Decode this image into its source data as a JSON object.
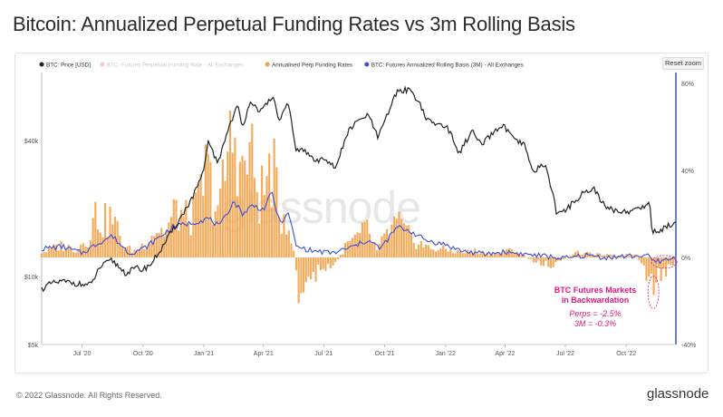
{
  "title": "Bitcoin: Annualized Perpetual Funding Rates vs 3m Rolling Basis",
  "reset_label": "Reset zoom",
  "watermark": "glassnode",
  "footer": {
    "copyright": "© 2022 Glassnode. All Rights Reserved.",
    "brand": "glassnode"
  },
  "annotation": {
    "line1": "BTC Futures Markets",
    "line2": "in Backwardation",
    "line3": "Perps = -2.5%",
    "line4": "3M = -0.3%"
  },
  "colors": {
    "price": "#222222",
    "funding_hidden": "#f26ba5",
    "perp_funding": "#f4a24a",
    "basis": "#3a4fd9",
    "annotation": "#e8177a",
    "axis_right": "#3a4fd9"
  },
  "chart_data": {
    "type": "line",
    "title": "Bitcoin: Annualized Perpetual Funding Rates vs 3m Rolling Basis",
    "x_range": [
      "2020-05-01",
      "2022-12-15"
    ],
    "x_tick_labels": [
      "Jul '20",
      "Oct '20",
      "Jan '21",
      "Apr '21",
      "Jul '21",
      "Oct '21",
      "Jan '22",
      "Apr '22",
      "Jul '22",
      "Oct '22"
    ],
    "y_left": {
      "scale": "log",
      "range": [
        5000,
        80000
      ],
      "tick_labels": [
        "$5k",
        "$10k",
        "$40k"
      ]
    },
    "y_right": {
      "scale": "linear",
      "range": [
        -40,
        85
      ],
      "tick_labels": [
        "-40%",
        "0%",
        "40%",
        "80%"
      ]
    },
    "grid": false,
    "legend_position": "top-left",
    "legend": [
      {
        "name": "BTC: Price [USD]",
        "color": "#222222"
      },
      {
        "name": "BTC: Futures Perpetual Funding Rate - All Exchanges",
        "color": "#f26ba5",
        "hidden": true
      },
      {
        "name": "Annualised Perp Funding Rates",
        "color": "#f4a24a"
      },
      {
        "name": "BTC: Futures Annualized Rolling Basis (3M) - All Exchanges",
        "color": "#3a4fd9"
      }
    ],
    "series": [
      {
        "name": "BTC: Price [USD]",
        "axis": "left",
        "style": "line",
        "points": [
          [
            "2020-05-01",
            8800
          ],
          [
            "2020-05-15",
            9300
          ],
          [
            "2020-06-01",
            9500
          ],
          [
            "2020-06-15",
            9400
          ],
          [
            "2020-07-01",
            9200
          ],
          [
            "2020-07-15",
            9200
          ],
          [
            "2020-07-28",
            11000
          ],
          [
            "2020-08-15",
            11800
          ],
          [
            "2020-09-05",
            10300
          ],
          [
            "2020-09-20",
            10900
          ],
          [
            "2020-10-01",
            10700
          ],
          [
            "2020-10-15",
            11500
          ],
          [
            "2020-11-01",
            13700
          ],
          [
            "2020-11-15",
            16000
          ],
          [
            "2020-12-01",
            19000
          ],
          [
            "2020-12-17",
            23000
          ],
          [
            "2021-01-01",
            29000
          ],
          [
            "2021-01-08",
            40000
          ],
          [
            "2021-01-22",
            31000
          ],
          [
            "2021-02-08",
            46000
          ],
          [
            "2021-02-21",
            57000
          ],
          [
            "2021-02-28",
            45000
          ],
          [
            "2021-03-13",
            61000
          ],
          [
            "2021-03-25",
            52000
          ],
          [
            "2021-04-14",
            63000
          ],
          [
            "2021-04-25",
            49000
          ],
          [
            "2021-05-08",
            58000
          ],
          [
            "2021-05-19",
            37000
          ],
          [
            "2021-06-01",
            36000
          ],
          [
            "2021-06-22",
            32000
          ],
          [
            "2021-07-01",
            34000
          ],
          [
            "2021-07-20",
            30000
          ],
          [
            "2021-08-07",
            44000
          ],
          [
            "2021-08-23",
            49000
          ],
          [
            "2021-09-06",
            52000
          ],
          [
            "2021-09-21",
            41000
          ],
          [
            "2021-10-01",
            48000
          ],
          [
            "2021-10-20",
            66000
          ],
          [
            "2021-11-08",
            67500
          ],
          [
            "2021-11-25",
            57000
          ],
          [
            "2021-12-04",
            49000
          ],
          [
            "2021-12-20",
            47000
          ],
          [
            "2022-01-01",
            47000
          ],
          [
            "2022-01-22",
            35000
          ],
          [
            "2022-02-10",
            44000
          ],
          [
            "2022-02-24",
            38000
          ],
          [
            "2022-03-28",
            47000
          ],
          [
            "2022-04-15",
            40000
          ],
          [
            "2022-05-01",
            38000
          ],
          [
            "2022-05-12",
            29000
          ],
          [
            "2022-05-31",
            31500
          ],
          [
            "2022-06-18",
            19000
          ],
          [
            "2022-07-01",
            19500
          ],
          [
            "2022-07-30",
            23800
          ],
          [
            "2022-08-14",
            24300
          ],
          [
            "2022-08-31",
            20000
          ],
          [
            "2022-09-15",
            19700
          ],
          [
            "2022-10-01",
            19300
          ],
          [
            "2022-10-25",
            20200
          ],
          [
            "2022-11-05",
            21300
          ],
          [
            "2022-11-09",
            16000
          ],
          [
            "2022-11-21",
            15800
          ],
          [
            "2022-12-05",
            17000
          ],
          [
            "2022-12-15",
            17300
          ]
        ]
      },
      {
        "name": "BTC: Futures Annualized Rolling Basis (3M) - All Exchanges",
        "axis": "right",
        "style": "line",
        "points": [
          [
            "2020-05-01",
            4
          ],
          [
            "2020-06-01",
            5
          ],
          [
            "2020-07-01",
            2
          ],
          [
            "2020-07-28",
            7
          ],
          [
            "2020-08-15",
            10
          ],
          [
            "2020-09-10",
            2
          ],
          [
            "2020-10-01",
            4
          ],
          [
            "2020-10-20",
            8
          ],
          [
            "2020-11-15",
            14
          ],
          [
            "2020-12-15",
            16
          ],
          [
            "2021-01-08",
            18
          ],
          [
            "2021-01-25",
            14
          ],
          [
            "2021-02-15",
            26
          ],
          [
            "2021-03-01",
            20
          ],
          [
            "2021-03-15",
            24
          ],
          [
            "2021-04-01",
            22
          ],
          [
            "2021-04-14",
            30
          ],
          [
            "2021-04-25",
            16
          ],
          [
            "2021-05-10",
            20
          ],
          [
            "2021-05-20",
            5
          ],
          [
            "2021-06-15",
            3
          ],
          [
            "2021-07-15",
            2
          ],
          [
            "2021-08-15",
            5
          ],
          [
            "2021-09-06",
            8
          ],
          [
            "2021-09-25",
            4
          ],
          [
            "2021-10-20",
            14
          ],
          [
            "2021-11-10",
            12
          ],
          [
            "2021-12-01",
            8
          ],
          [
            "2021-12-31",
            6
          ],
          [
            "2022-01-25",
            3
          ],
          [
            "2022-03-01",
            1.5
          ],
          [
            "2022-04-01",
            2.5
          ],
          [
            "2022-05-01",
            1.5
          ],
          [
            "2022-06-01",
            0.5
          ],
          [
            "2022-07-01",
            -0.5
          ],
          [
            "2022-08-01",
            1
          ],
          [
            "2022-09-01",
            0
          ],
          [
            "2022-10-01",
            0.5
          ],
          [
            "2022-11-01",
            1
          ],
          [
            "2022-11-12",
            -2
          ],
          [
            "2022-12-15",
            -0.3
          ]
        ]
      },
      {
        "name": "Annualised Perp Funding Rates",
        "axis": "right",
        "style": "bar",
        "points": [
          [
            "2020-05-01",
            3
          ],
          [
            "2020-05-20",
            6
          ],
          [
            "2020-06-01",
            8
          ],
          [
            "2020-06-20",
            5
          ],
          [
            "2020-07-10",
            12
          ],
          [
            "2020-07-22",
            28
          ],
          [
            "2020-08-01",
            22
          ],
          [
            "2020-08-15",
            25
          ],
          [
            "2020-09-05",
            6
          ],
          [
            "2020-09-20",
            4
          ],
          [
            "2020-10-01",
            8
          ],
          [
            "2020-10-20",
            18
          ],
          [
            "2020-11-05",
            16
          ],
          [
            "2020-11-20",
            30
          ],
          [
            "2020-12-05",
            24
          ],
          [
            "2020-12-20",
            28
          ],
          [
            "2021-01-05",
            55
          ],
          [
            "2021-01-15",
            40
          ],
          [
            "2021-01-25",
            30
          ],
          [
            "2021-02-08",
            70
          ],
          [
            "2021-02-20",
            80
          ],
          [
            "2021-03-01",
            48
          ],
          [
            "2021-03-10",
            70
          ],
          [
            "2021-03-25",
            38
          ],
          [
            "2021-04-05",
            45
          ],
          [
            "2021-04-15",
            62
          ],
          [
            "2021-04-25",
            22
          ],
          [
            "2021-05-05",
            30
          ],
          [
            "2021-05-15",
            10
          ],
          [
            "2021-05-25",
            -25
          ],
          [
            "2021-06-10",
            -15
          ],
          [
            "2021-06-25",
            -8
          ],
          [
            "2021-07-15",
            -6
          ],
          [
            "2021-08-05",
            8
          ],
          [
            "2021-08-20",
            12
          ],
          [
            "2021-09-05",
            18
          ],
          [
            "2021-09-20",
            4
          ],
          [
            "2021-10-05",
            15
          ],
          [
            "2021-10-20",
            22
          ],
          [
            "2021-11-05",
            14
          ],
          [
            "2021-11-20",
            10
          ],
          [
            "2021-12-05",
            6
          ],
          [
            "2022-01-01",
            5
          ],
          [
            "2022-01-25",
            3
          ],
          [
            "2022-02-15",
            4
          ],
          [
            "2022-03-15",
            2
          ],
          [
            "2022-04-15",
            5
          ],
          [
            "2022-05-15",
            -3
          ],
          [
            "2022-06-15",
            -5
          ],
          [
            "2022-07-15",
            3
          ],
          [
            "2022-08-15",
            2
          ],
          [
            "2022-09-15",
            1
          ],
          [
            "2022-10-15",
            2
          ],
          [
            "2022-11-10",
            -20
          ],
          [
            "2022-11-20",
            -12
          ],
          [
            "2022-12-15",
            -2.5
          ]
        ]
      }
    ],
    "annotations": [
      {
        "text": "BTC Futures Markets in Backwardation",
        "detail": [
          "Perps = -2.5%",
          "3M = -0.3%"
        ],
        "anchor_date": "2022-11-20"
      }
    ]
  }
}
